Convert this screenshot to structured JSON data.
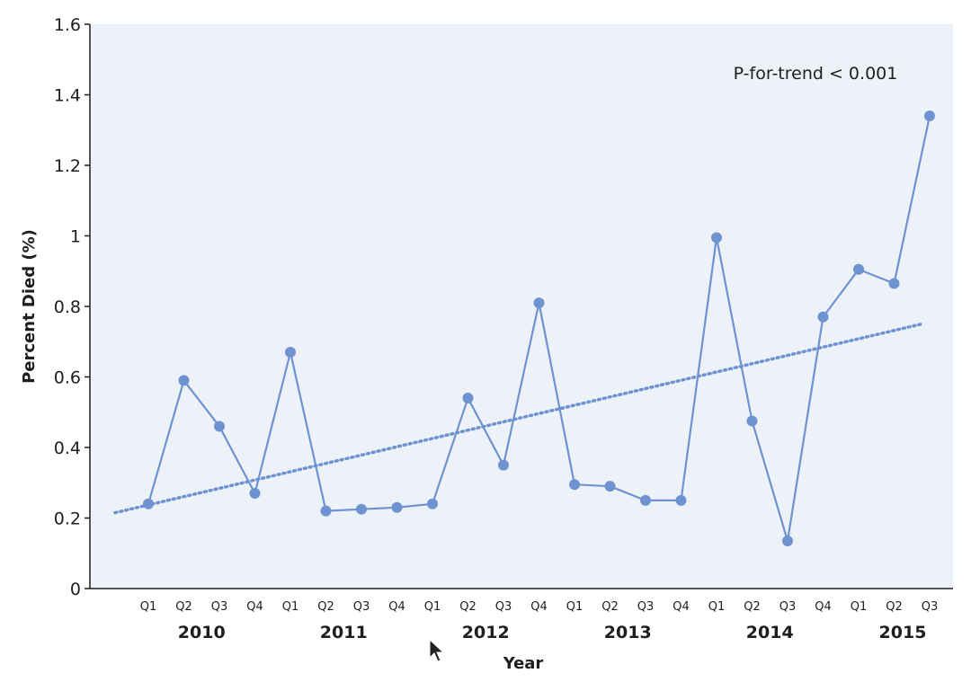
{
  "chart_data": {
    "type": "line",
    "xlabel": "Year",
    "ylabel": "Percent Died (%)",
    "ylim": [
      0,
      1.6
    ],
    "yticks": [
      "0",
      "0.2",
      "0.4",
      "0.6",
      "0.8",
      "1",
      "1.2",
      "1.4",
      "1.6"
    ],
    "ytick_values": [
      0,
      0.2,
      0.4,
      0.6,
      0.8,
      1.0,
      1.2,
      1.4,
      1.6
    ],
    "grid": false,
    "categories": [
      "Q1",
      "Q2",
      "Q3",
      "Q4",
      "Q1",
      "Q2",
      "Q3",
      "Q4",
      "Q1",
      "Q2",
      "Q3",
      "Q4",
      "Q1",
      "Q2",
      "Q3",
      "Q4",
      "Q1",
      "Q2",
      "Q3",
      "Q4",
      "Q1",
      "Q2",
      "Q3"
    ],
    "year_groups": [
      {
        "label": "2010",
        "quarters": [
          "Q1",
          "Q2",
          "Q3",
          "Q4"
        ]
      },
      {
        "label": "2011",
        "quarters": [
          "Q1",
          "Q2",
          "Q3",
          "Q4"
        ]
      },
      {
        "label": "2012",
        "quarters": [
          "Q1",
          "Q2",
          "Q3",
          "Q4"
        ]
      },
      {
        "label": "2013",
        "quarters": [
          "Q1",
          "Q2",
          "Q3",
          "Q4"
        ]
      },
      {
        "label": "2014",
        "quarters": [
          "Q1",
          "Q2",
          "Q3",
          "Q4"
        ]
      },
      {
        "label": "2015",
        "quarters": [
          "Q1",
          "Q2",
          "Q3"
        ]
      }
    ],
    "series": [
      {
        "values": [
          0.24,
          0.59,
          0.46,
          0.27,
          0.67,
          0.22,
          0.225,
          0.23,
          0.24,
          0.54,
          0.35,
          0.81,
          0.295,
          0.29,
          0.25,
          0.25,
          0.995,
          0.475,
          0.135,
          0.77,
          0.905,
          0.865,
          1.34
        ]
      }
    ],
    "trend_line": {
      "start": 0.215,
      "end": 0.75,
      "style": "dotted"
    },
    "annotation": "P-for-trend < 0.001"
  },
  "colors": {
    "series": "#6f93d0",
    "plot_background": "#edf1f8",
    "axis": "#1e1e1e"
  }
}
